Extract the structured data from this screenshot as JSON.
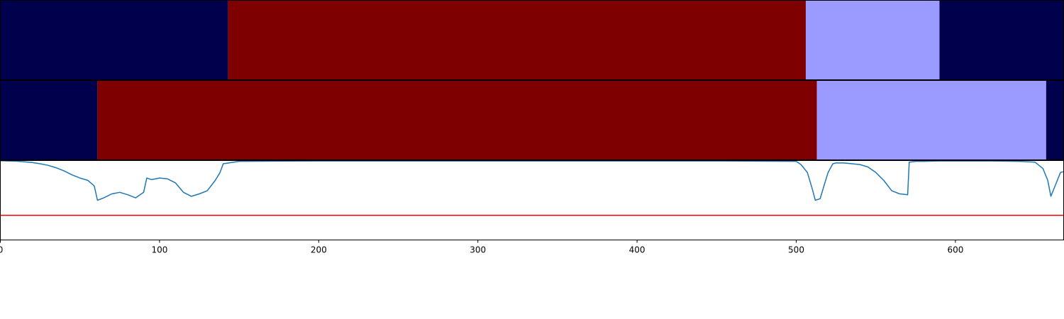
{
  "chart_data": [
    {
      "type": "segment-bar",
      "name": "",
      "xlim": [
        0,
        668
      ],
      "segments": [
        {
          "start": 0,
          "end": 143,
          "color": "#00004c"
        },
        {
          "start": 143,
          "end": 506,
          "color": "#7f0000"
        },
        {
          "start": 506,
          "end": 590,
          "color": "#9b9bff"
        },
        {
          "start": 590,
          "end": 668,
          "color": "#00004c"
        }
      ]
    },
    {
      "type": "segment-bar",
      "name": "",
      "xlim": [
        0,
        668
      ],
      "segments": [
        {
          "start": 0,
          "end": 61,
          "color": "#00004c"
        },
        {
          "start": 61,
          "end": 513,
          "color": "#7f0000"
        },
        {
          "start": 513,
          "end": 657,
          "color": "#9b9bff"
        },
        {
          "start": 657,
          "end": 668,
          "color": "#00004c"
        }
      ]
    },
    {
      "type": "line",
      "xlim": [
        0,
        668
      ],
      "ylim": [
        0,
        1
      ],
      "x_ticks": [
        0,
        100,
        200,
        300,
        400,
        500,
        600
      ],
      "grid": false,
      "line_color": "#1f77b4",
      "threshold": {
        "y": 0.31,
        "color": "#ff0000"
      },
      "series": [
        {
          "x": [
            0,
            5,
            10,
            15,
            20,
            25,
            30,
            35,
            40,
            45,
            50,
            55,
            59,
            61,
            65,
            70,
            75,
            80,
            85,
            90,
            92,
            95,
            100,
            105,
            110,
            115,
            120,
            125,
            130,
            135,
            138,
            140,
            150,
            200,
            300,
            400,
            450,
            500,
            503,
            507,
            510,
            512,
            515,
            518,
            520,
            523,
            525,
            530,
            535,
            540,
            545,
            550,
            555,
            560,
            565,
            570,
            571,
            575,
            580,
            590,
            600,
            620,
            640,
            650,
            655,
            658,
            660,
            663,
            666,
            668
          ],
          "y": [
            0.997,
            0.995,
            0.992,
            0.985,
            0.975,
            0.96,
            0.94,
            0.91,
            0.87,
            0.82,
            0.78,
            0.75,
            0.68,
            0.5,
            0.53,
            0.58,
            0.6,
            0.57,
            0.53,
            0.6,
            0.78,
            0.76,
            0.78,
            0.77,
            0.72,
            0.6,
            0.55,
            0.58,
            0.62,
            0.75,
            0.85,
            0.96,
            0.99,
            0.995,
            0.995,
            0.995,
            0.995,
            0.99,
            0.95,
            0.85,
            0.65,
            0.5,
            0.52,
            0.72,
            0.85,
            0.96,
            0.97,
            0.97,
            0.96,
            0.95,
            0.92,
            0.85,
            0.75,
            0.62,
            0.58,
            0.57,
            0.98,
            0.99,
            0.99,
            0.995,
            0.995,
            0.995,
            0.99,
            0.98,
            0.9,
            0.75,
            0.55,
            0.7,
            0.85,
            0.86
          ]
        }
      ]
    }
  ]
}
